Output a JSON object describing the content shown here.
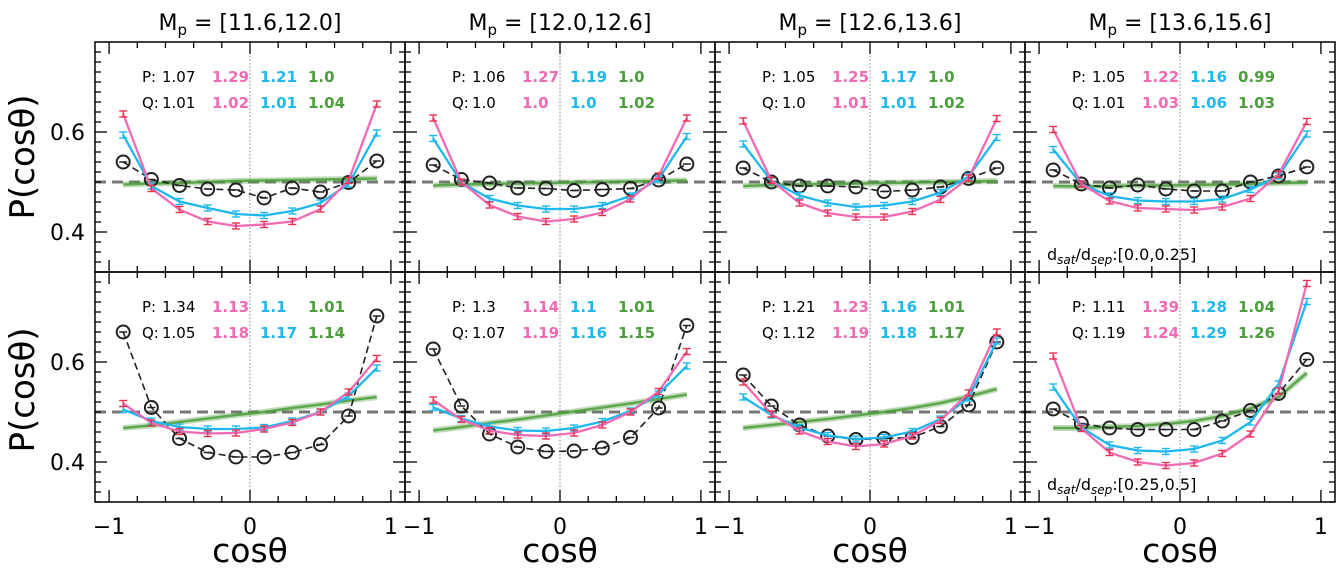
{
  "figure": {
    "ylabel": "P(cosθ)",
    "xlabel": "cosθ",
    "xlim": [
      -1.1,
      1.1
    ],
    "ylim": [
      0.32,
      0.78
    ],
    "xticks": [
      -1,
      0,
      1
    ],
    "xtick_labels": [
      "−1",
      "0",
      "1"
    ],
    "yticks": [
      0.4,
      0.6
    ],
    "ytick_labels": [
      "0.4",
      "0.6"
    ],
    "reference_line": 0.5,
    "colors": {
      "black": "#222222",
      "pink": "#f06ab4",
      "red": "#e8334f",
      "blue": "#1fb8ee",
      "green": "#4c9e3c",
      "gray": "#777777"
    }
  },
  "chart_data": [
    {
      "type": "line",
      "row": 0,
      "col": 0,
      "title": "M_p = [11.6,12.0]",
      "stats": {
        "P": [
          "1.07",
          "1.29",
          "1.21",
          "1.0"
        ],
        "Q": [
          "1.01",
          "1.02",
          "1.01",
          "1.04"
        ]
      },
      "x": [
        -0.9,
        -0.7,
        -0.5,
        -0.3,
        -0.1,
        0.1,
        0.3,
        0.5,
        0.7,
        0.9
      ],
      "series": [
        {
          "name": "pink",
          "values": [
            0.636,
            0.487,
            0.445,
            0.421,
            0.412,
            0.415,
            0.421,
            0.446,
            0.503,
            0.656
          ]
        },
        {
          "name": "blue",
          "values": [
            0.594,
            0.492,
            0.461,
            0.448,
            0.436,
            0.433,
            0.442,
            0.458,
            0.496,
            0.598
          ]
        },
        {
          "name": "black",
          "values": [
            0.54,
            0.505,
            0.493,
            0.486,
            0.484,
            0.468,
            0.488,
            0.48,
            0.499,
            0.542
          ]
        },
        {
          "name": "green",
          "values": [
            0.495,
            0.497,
            0.498,
            0.5,
            0.502,
            0.503,
            0.504,
            0.505,
            0.506,
            0.507
          ]
        }
      ]
    },
    {
      "type": "line",
      "row": 0,
      "col": 1,
      "title": "M_p = [12.0,12.6]",
      "stats": {
        "P": [
          "1.06",
          "1.27",
          "1.19",
          "1.0"
        ],
        "Q": [
          "1.0",
          "1.0",
          "1.0",
          "1.02"
        ]
      },
      "x": [
        -0.9,
        -0.7,
        -0.5,
        -0.3,
        -0.1,
        0.1,
        0.3,
        0.5,
        0.7,
        0.9
      ],
      "series": [
        {
          "name": "pink",
          "values": [
            0.628,
            0.5,
            0.454,
            0.431,
            0.421,
            0.426,
            0.439,
            0.466,
            0.512,
            0.628
          ]
        },
        {
          "name": "blue",
          "values": [
            0.587,
            0.499,
            0.467,
            0.453,
            0.446,
            0.446,
            0.453,
            0.472,
            0.506,
            0.591
          ]
        },
        {
          "name": "black",
          "values": [
            0.534,
            0.505,
            0.498,
            0.488,
            0.487,
            0.483,
            0.485,
            0.487,
            0.504,
            0.536
          ]
        },
        {
          "name": "green",
          "values": [
            0.493,
            0.495,
            0.496,
            0.497,
            0.498,
            0.499,
            0.5,
            0.501,
            0.502,
            0.503
          ]
        }
      ]
    },
    {
      "type": "line",
      "row": 0,
      "col": 2,
      "title": "M_p = [12.6,13.6]",
      "stats": {
        "P": [
          "1.05",
          "1.25",
          "1.17",
          "1.0"
        ],
        "Q": [
          "1.0",
          "1.01",
          "1.01",
          "1.02"
        ]
      },
      "x": [
        -0.9,
        -0.7,
        -0.5,
        -0.3,
        -0.1,
        0.1,
        0.3,
        0.5,
        0.7,
        0.9
      ],
      "series": [
        {
          "name": "pink",
          "values": [
            0.622,
            0.503,
            0.458,
            0.438,
            0.43,
            0.43,
            0.441,
            0.465,
            0.508,
            0.627
          ]
        },
        {
          "name": "blue",
          "values": [
            0.576,
            0.502,
            0.473,
            0.458,
            0.45,
            0.453,
            0.461,
            0.479,
            0.511,
            0.589
          ]
        },
        {
          "name": "black",
          "values": [
            0.528,
            0.5,
            0.492,
            0.492,
            0.49,
            0.481,
            0.484,
            0.49,
            0.507,
            0.528
          ]
        },
        {
          "name": "green",
          "values": [
            0.492,
            0.494,
            0.495,
            0.496,
            0.497,
            0.498,
            0.499,
            0.5,
            0.501,
            0.502
          ]
        }
      ]
    },
    {
      "type": "line",
      "row": 0,
      "col": 3,
      "title": "M_p = [13.6,15.6]",
      "stats": {
        "P": [
          "1.05",
          "1.22",
          "1.16",
          "0.99"
        ],
        "Q": [
          "1.01",
          "1.03",
          "1.06",
          "1.03"
        ]
      },
      "annotation": "d_sat/d_sep:[0.0,0.25]",
      "x": [
        -0.9,
        -0.7,
        -0.5,
        -0.3,
        -0.1,
        0.1,
        0.3,
        0.5,
        0.7,
        0.9
      ],
      "series": [
        {
          "name": "pink",
          "values": [
            0.605,
            0.496,
            0.462,
            0.448,
            0.446,
            0.444,
            0.45,
            0.467,
            0.515,
            0.621
          ]
        },
        {
          "name": "blue",
          "values": [
            0.565,
            0.496,
            0.472,
            0.463,
            0.461,
            0.461,
            0.466,
            0.485,
            0.512,
            0.596
          ]
        },
        {
          "name": "black",
          "values": [
            0.524,
            0.496,
            0.488,
            0.494,
            0.486,
            0.482,
            0.482,
            0.5,
            0.512,
            0.53
          ]
        },
        {
          "name": "green",
          "values": [
            0.492,
            0.491,
            0.492,
            0.493,
            0.493,
            0.494,
            0.495,
            0.496,
            0.498,
            0.499
          ]
        }
      ]
    },
    {
      "type": "line",
      "row": 1,
      "col": 0,
      "title": "",
      "stats": {
        "P": [
          "1.34",
          "1.13",
          "1.1",
          "1.01"
        ],
        "Q": [
          "1.05",
          "1.18",
          "1.17",
          "1.14"
        ]
      },
      "x": [
        -0.9,
        -0.7,
        -0.5,
        -0.3,
        -0.1,
        0.1,
        0.3,
        0.5,
        0.7,
        0.9
      ],
      "series": [
        {
          "name": "pink",
          "values": [
            0.517,
            0.478,
            0.461,
            0.457,
            0.458,
            0.466,
            0.479,
            0.5,
            0.54,
            0.607
          ]
        },
        {
          "name": "blue",
          "values": [
            0.505,
            0.482,
            0.47,
            0.466,
            0.466,
            0.469,
            0.482,
            0.5,
            0.532,
            0.588
          ]
        },
        {
          "name": "black",
          "values": [
            0.66,
            0.509,
            0.447,
            0.419,
            0.41,
            0.41,
            0.419,
            0.435,
            0.492,
            0.692
          ]
        },
        {
          "name": "green",
          "values": [
            0.468,
            0.473,
            0.48,
            0.487,
            0.494,
            0.5,
            0.508,
            0.515,
            0.523,
            0.53
          ]
        }
      ]
    },
    {
      "type": "line",
      "row": 1,
      "col": 1,
      "title": "",
      "stats": {
        "P": [
          "1.3",
          "1.14",
          "1.1",
          "1.01"
        ],
        "Q": [
          "1.07",
          "1.19",
          "1.16",
          "1.15"
        ]
      },
      "x": [
        -0.9,
        -0.7,
        -0.5,
        -0.3,
        -0.1,
        0.1,
        0.3,
        0.5,
        0.7,
        0.9
      ],
      "series": [
        {
          "name": "pink",
          "values": [
            0.524,
            0.485,
            0.463,
            0.454,
            0.452,
            0.458,
            0.474,
            0.5,
            0.541,
            0.621
          ]
        },
        {
          "name": "blue",
          "values": [
            0.509,
            0.487,
            0.471,
            0.463,
            0.462,
            0.468,
            0.481,
            0.502,
            0.536,
            0.592
          ]
        },
        {
          "name": "black",
          "values": [
            0.626,
            0.512,
            0.456,
            0.43,
            0.421,
            0.422,
            0.428,
            0.449,
            0.508,
            0.673
          ]
        },
        {
          "name": "green",
          "values": [
            0.463,
            0.47,
            0.478,
            0.485,
            0.493,
            0.501,
            0.509,
            0.517,
            0.526,
            0.535
          ]
        }
      ]
    },
    {
      "type": "line",
      "row": 1,
      "col": 2,
      "title": "",
      "stats": {
        "P": [
          "1.21",
          "1.23",
          "1.16",
          "1.01"
        ],
        "Q": [
          "1.12",
          "1.19",
          "1.18",
          "1.17"
        ]
      },
      "x": [
        -0.9,
        -0.7,
        -0.5,
        -0.3,
        -0.1,
        0.1,
        0.3,
        0.5,
        0.7,
        0.9
      ],
      "series": [
        {
          "name": "pink",
          "values": [
            0.56,
            0.496,
            0.462,
            0.441,
            0.431,
            0.436,
            0.452,
            0.483,
            0.538,
            0.66
          ]
        },
        {
          "name": "blue",
          "values": [
            0.53,
            0.494,
            0.469,
            0.453,
            0.446,
            0.449,
            0.461,
            0.486,
            0.528,
            0.642
          ]
        },
        {
          "name": "black",
          "values": [
            0.574,
            0.512,
            0.474,
            0.452,
            0.445,
            0.447,
            0.449,
            0.471,
            0.514,
            0.64
          ]
        },
        {
          "name": "green",
          "values": [
            0.468,
            0.474,
            0.48,
            0.486,
            0.493,
            0.5,
            0.508,
            0.518,
            0.531,
            0.546
          ]
        }
      ]
    },
    {
      "type": "line",
      "row": 1,
      "col": 3,
      "title": "",
      "stats": {
        "P": [
          "1.11",
          "1.39",
          "1.28",
          "1.04"
        ],
        "Q": [
          "1.19",
          "1.24",
          "1.29",
          "1.26"
        ]
      },
      "annotation": "d_sat/d_sep:[0.25,0.5]",
      "x": [
        -0.9,
        -0.7,
        -0.5,
        -0.3,
        -0.1,
        0.1,
        0.3,
        0.5,
        0.7,
        0.9
      ],
      "series": [
        {
          "name": "pink",
          "values": [
            0.612,
            0.467,
            0.419,
            0.4,
            0.393,
            0.398,
            0.417,
            0.456,
            0.542,
            0.757
          ]
        },
        {
          "name": "blue",
          "values": [
            0.55,
            0.469,
            0.434,
            0.423,
            0.421,
            0.426,
            0.443,
            0.48,
            0.556,
            0.721
          ]
        },
        {
          "name": "black",
          "values": [
            0.506,
            0.477,
            0.468,
            0.465,
            0.465,
            0.465,
            0.482,
            0.503,
            0.537,
            0.605
          ]
        },
        {
          "name": "green",
          "values": [
            0.468,
            0.468,
            0.47,
            0.472,
            0.476,
            0.482,
            0.492,
            0.507,
            0.53,
            0.578
          ]
        }
      ]
    }
  ]
}
